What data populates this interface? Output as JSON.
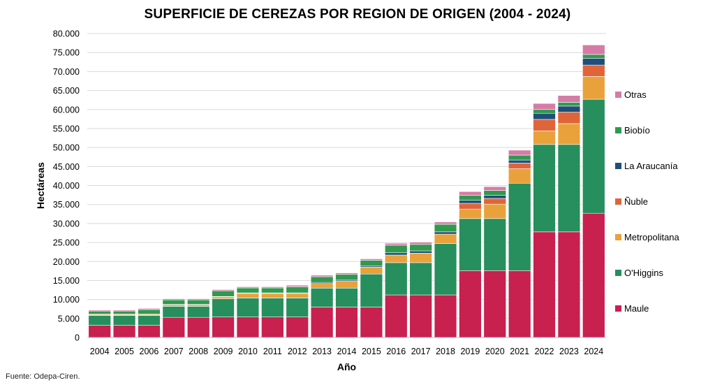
{
  "chart_data": {
    "type": "bar",
    "stacked": true,
    "title": "SUPERFICIE DE CEREZAS POR REGION DE ORIGEN (2004 - 2024)",
    "xlabel": "Año",
    "ylabel": "Hectáreas",
    "ylim": [
      0,
      80000
    ],
    "yticks": [
      0,
      5000,
      10000,
      15000,
      20000,
      25000,
      30000,
      35000,
      40000,
      45000,
      50000,
      55000,
      60000,
      65000,
      70000,
      75000,
      80000
    ],
    "ytick_labels": [
      "0",
      "5.000",
      "10.000",
      "15.000",
      "20.000",
      "25.000",
      "30.000",
      "35.000",
      "40.000",
      "45.000",
      "50.000",
      "55.000",
      "60.000",
      "65.000",
      "70.000",
      "75.000",
      "80.000"
    ],
    "grid": true,
    "legend_position": "right",
    "categories": [
      "2004",
      "2005",
      "2006",
      "2007",
      "2008",
      "2009",
      "2010",
      "2011",
      "2012",
      "2013",
      "2014",
      "2015",
      "2016",
      "2017",
      "2018",
      "2019",
      "2020",
      "2021",
      "2022",
      "2023",
      "2024"
    ],
    "series": [
      {
        "name": "Maule",
        "color": "#c8204f",
        "values": [
          3200,
          3200,
          3200,
          5300,
          5300,
          5400,
          5400,
          5400,
          5400,
          8000,
          8000,
          8000,
          11200,
          11200,
          11200,
          17600,
          17600,
          17600,
          27800,
          27800,
          32700
        ]
      },
      {
        "name": "O'Higgins",
        "color": "#278f5d",
        "values": [
          2600,
          2600,
          2600,
          2900,
          2900,
          4800,
          5000,
          5000,
          5000,
          5000,
          5000,
          8700,
          8500,
          8500,
          13500,
          13700,
          13700,
          23000,
          23000,
          23000,
          30000
        ]
      },
      {
        "name": "Metropolitana",
        "color": "#e9a23b",
        "values": [
          250,
          250,
          250,
          400,
          400,
          500,
          1200,
          1200,
          1200,
          1200,
          1800,
          1800,
          2000,
          2500,
          2500,
          2500,
          3800,
          3800,
          3600,
          5500,
          6000
        ]
      },
      {
        "name": "Ñuble",
        "color": "#e0643a",
        "values": [
          0,
          0,
          0,
          0,
          0,
          0,
          0,
          0,
          0,
          0,
          0,
          0,
          0,
          0,
          0,
          1500,
          1500,
          1500,
          3000,
          3000,
          3000
        ]
      },
      {
        "name": "La Araucanía",
        "color": "#1f4e79",
        "values": [
          100,
          100,
          100,
          100,
          100,
          100,
          150,
          150,
          150,
          300,
          300,
          300,
          600,
          600,
          600,
          800,
          800,
          800,
          1600,
          1600,
          1800
        ]
      },
      {
        "name": "Biobío",
        "color": "#2f9a4f",
        "values": [
          800,
          800,
          1200,
          1200,
          1200,
          1500,
          1300,
          1300,
          1600,
          1500,
          1500,
          1500,
          2000,
          1700,
          2000,
          1300,
          1300,
          1300,
          1000,
          1000,
          1000
        ]
      },
      {
        "name": "Otras",
        "color": "#d67ba6",
        "values": [
          250,
          250,
          300,
          300,
          300,
          300,
          300,
          300,
          400,
          400,
          400,
          400,
          500,
          600,
          600,
          1000,
          1000,
          1300,
          1600,
          1800,
          2500
        ]
      }
    ],
    "legend_order": [
      "Otras",
      "Biobío",
      "La Araucanía",
      "Ñuble",
      "Metropolitana",
      "O'Higgins",
      "Maule"
    ],
    "source": "Fuente: Odepa-Ciren."
  }
}
